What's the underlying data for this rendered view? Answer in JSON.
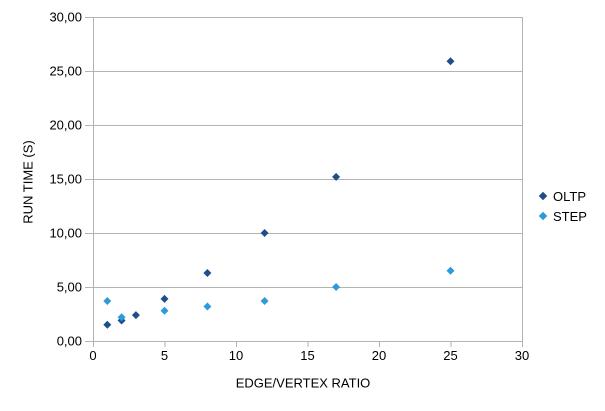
{
  "chart_data": {
    "type": "scatter",
    "title": "",
    "xlabel": "EDGE/VERTEX RATIO",
    "ylabel": "RUN TIME (S)",
    "xlim": [
      0,
      30
    ],
    "ylim": [
      0,
      30
    ],
    "grid": "horizontal",
    "legend_position": "right",
    "x_ticks": {
      "values": [
        0,
        5,
        10,
        15,
        20,
        25,
        30
      ],
      "labels": [
        "0",
        "5",
        "10",
        "15",
        "20",
        "25",
        "30"
      ]
    },
    "y_ticks": {
      "values": [
        0,
        5,
        10,
        15,
        20,
        25,
        30
      ],
      "labels": [
        "0,00",
        "5,00",
        "10,00",
        "15,00",
        "20,00",
        "25,00",
        "30,00"
      ]
    },
    "series": [
      {
        "name": "OLTP",
        "color": "#1f4e8c",
        "marker": "diamond",
        "points": [
          [
            1,
            1.5
          ],
          [
            2,
            1.9
          ],
          [
            3,
            2.4
          ],
          [
            5,
            3.9
          ],
          [
            8,
            6.3
          ],
          [
            12,
            10.0
          ],
          [
            17,
            15.2
          ],
          [
            25,
            25.9
          ]
        ]
      },
      {
        "name": "STEP",
        "color": "#2d9bd9",
        "marker": "diamond",
        "points": [
          [
            1,
            3.7
          ],
          [
            2,
            2.2
          ],
          [
            5,
            2.8
          ],
          [
            8,
            3.2
          ],
          [
            12,
            3.7
          ],
          [
            17,
            5.0
          ],
          [
            25,
            6.5
          ]
        ]
      }
    ],
    "colors": {
      "gridline": "#b3b3b3",
      "axis": "#b3b3b3",
      "tick_label": "#000000"
    }
  }
}
